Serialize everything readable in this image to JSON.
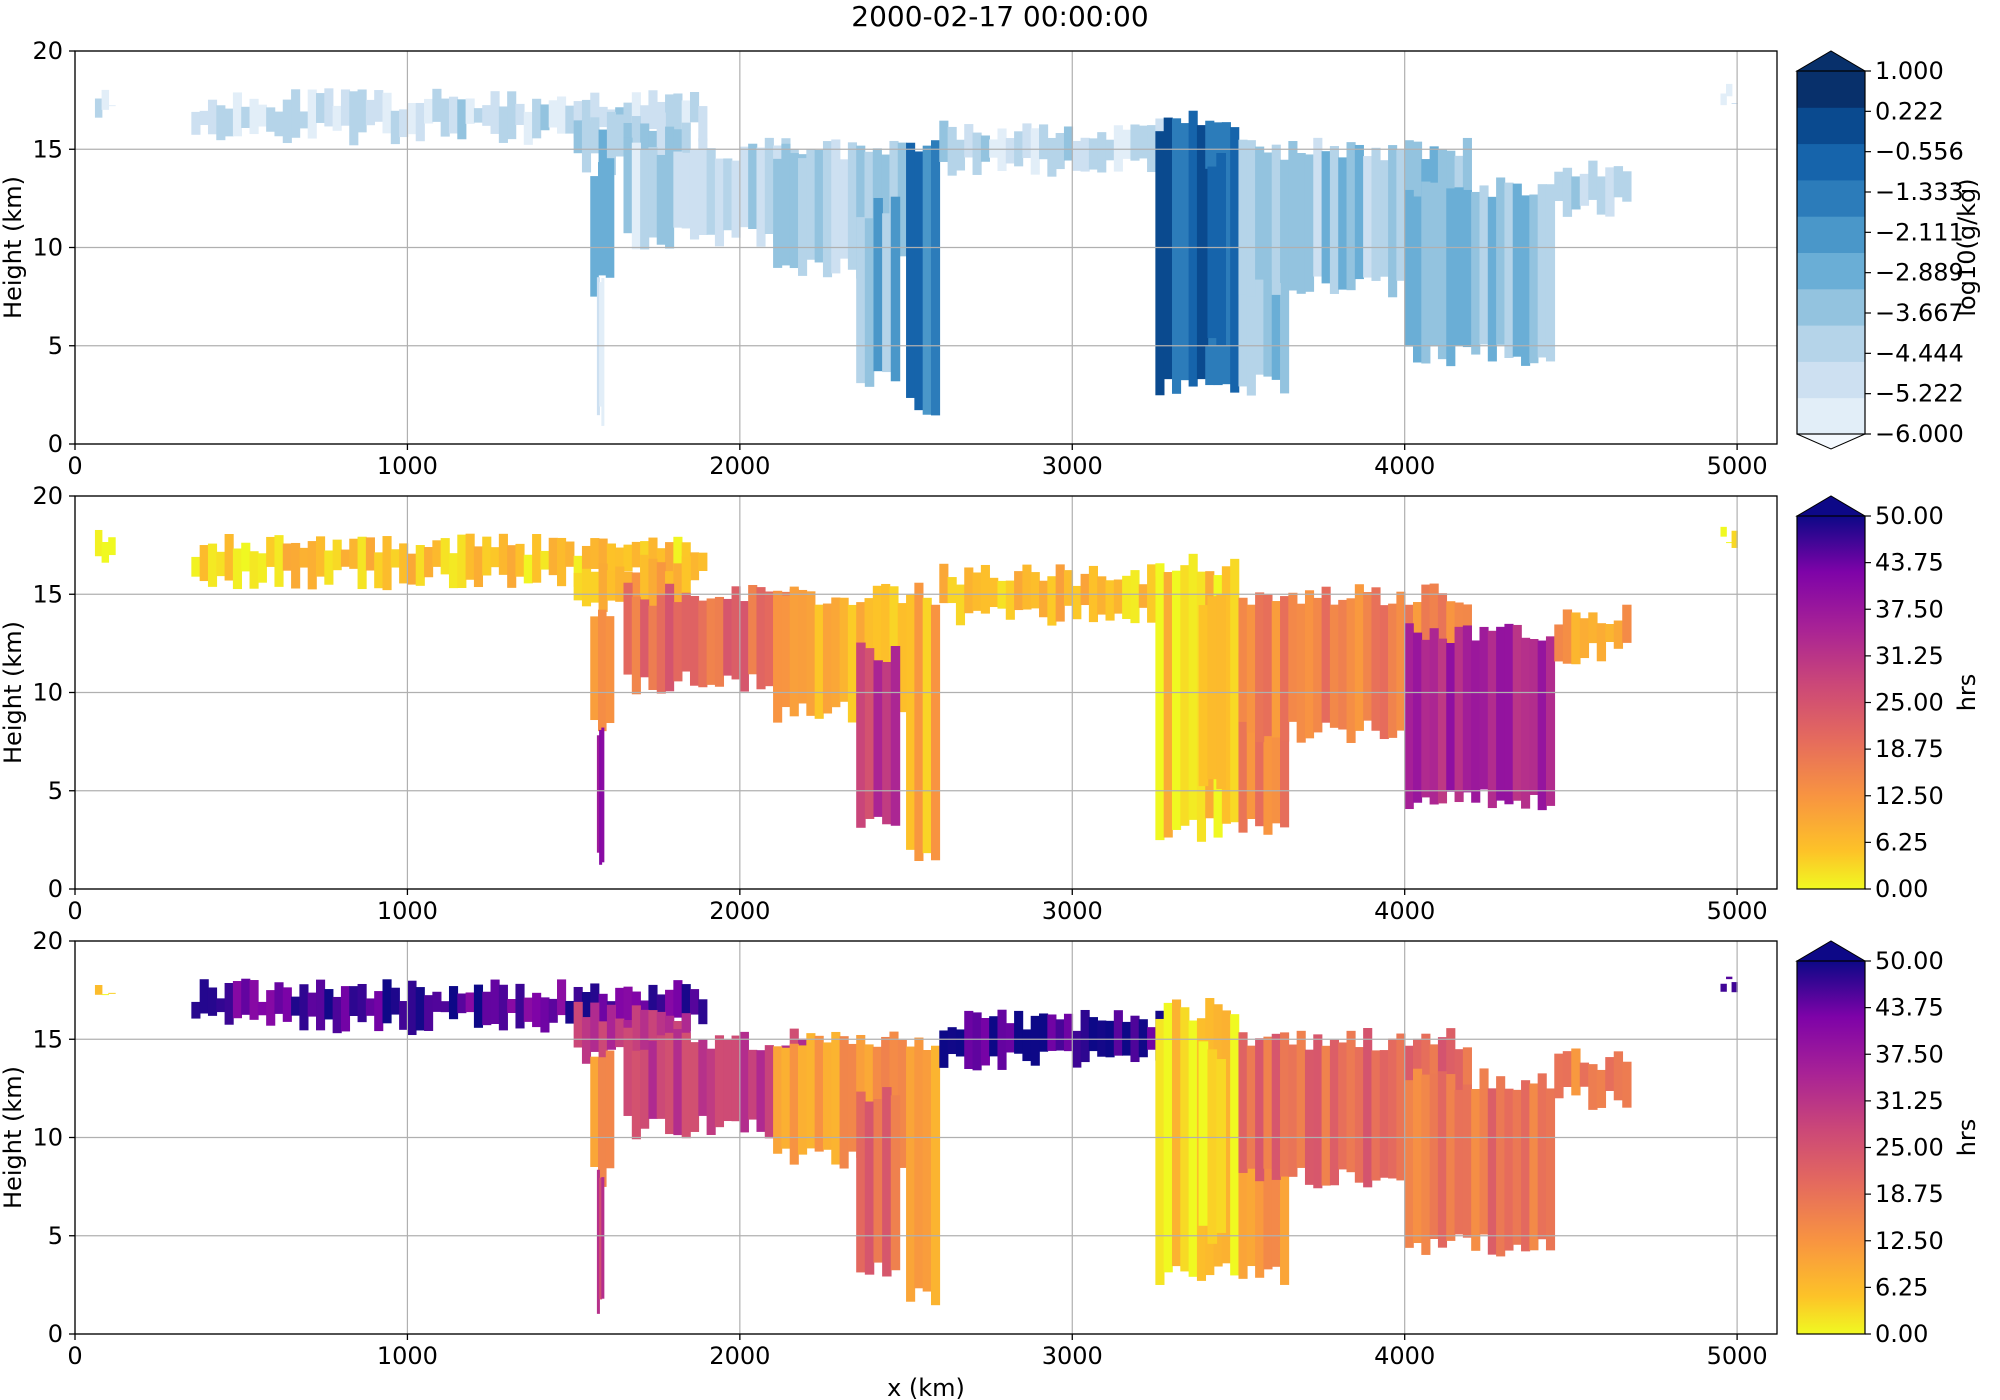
{
  "figure": {
    "title": "2000-02-17 00:00:00"
  },
  "colors": {
    "blues": [
      "#f4f9fe",
      "#e2eef8",
      "#cde0f1",
      "#b5d4e9",
      "#93c3df",
      "#6aaed6",
      "#4a97c9",
      "#2c7cba",
      "#1664ab",
      "#0a4a8f",
      "#08306b"
    ],
    "plasma_light": "#f0f921",
    "plasma_dark": "#0d0887"
  },
  "chart_data": [
    {
      "type": "heatmap",
      "panel": "top",
      "colormap": "Blues",
      "xlabel": "",
      "ylabel": "Height (km)",
      "xlim": [
        0,
        5120
      ],
      "ylim": [
        0,
        20
      ],
      "x_ticks": [
        "0",
        "1000",
        "2000",
        "3000",
        "4000",
        "5000"
      ],
      "y_ticks": [
        "0",
        "5",
        "10",
        "15",
        "20"
      ],
      "grid": true,
      "colorbar": {
        "label": "log10(g/kg)",
        "ticks": [
          "1.000",
          "0.222",
          "−0.556",
          "−1.333",
          "−2.111",
          "−2.889",
          "−3.667",
          "−4.444",
          "−5.222",
          "−6.000"
        ],
        "extend": "both",
        "range": [
          -6.0,
          1.0
        ]
      }
    },
    {
      "type": "heatmap",
      "panel": "middle",
      "colormap": "plasma_r",
      "xlabel": "",
      "ylabel": "Height (km)",
      "xlim": [
        0,
        5120
      ],
      "ylim": [
        0,
        20
      ],
      "x_ticks": [
        "0",
        "1000",
        "2000",
        "3000",
        "4000",
        "5000"
      ],
      "y_ticks": [
        "0",
        "5",
        "10",
        "15",
        "20"
      ],
      "grid": true,
      "colorbar": {
        "label": "hrs",
        "ticks": [
          "50.00",
          "43.75",
          "37.50",
          "31.25",
          "25.00",
          "18.75",
          "12.50",
          "6.25",
          "0.00"
        ],
        "extend": "max",
        "range": [
          0,
          50
        ]
      }
    },
    {
      "type": "heatmap",
      "panel": "bottom",
      "colormap": "plasma_r",
      "xlabel": "x (km)",
      "ylabel": "Height (km)",
      "xlim": [
        0,
        5120
      ],
      "ylim": [
        0,
        20
      ],
      "x_ticks": [
        "0",
        "1000",
        "2000",
        "3000",
        "4000",
        "5000"
      ],
      "y_ticks": [
        "0",
        "5",
        "10",
        "15",
        "20"
      ],
      "grid": true,
      "colorbar": {
        "label": "hrs",
        "ticks": [
          "50.00",
          "43.75",
          "37.50",
          "31.25",
          "25.00",
          "18.75",
          "12.50",
          "6.25",
          "0.00"
        ],
        "extend": "max",
        "range": [
          0,
          50
        ]
      }
    }
  ]
}
